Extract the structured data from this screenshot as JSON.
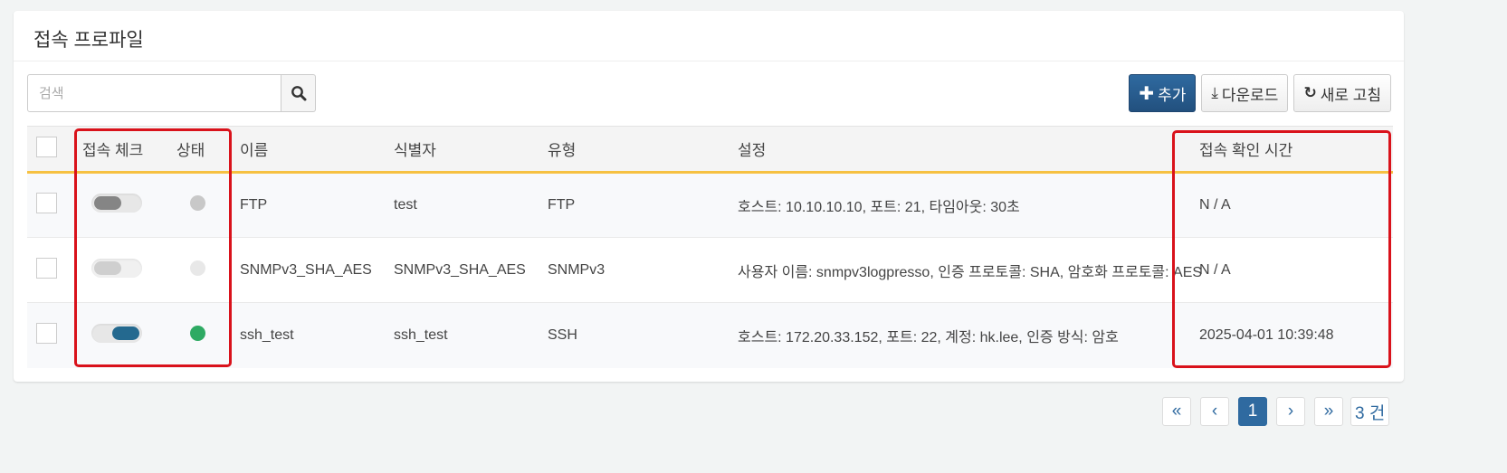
{
  "title": "접속 프로파일",
  "search": {
    "placeholder": "검색"
  },
  "toolbar": {
    "add": "추가",
    "download": "다운로드",
    "refresh": "새로 고침"
  },
  "columns": [
    "접속 체크",
    "상태",
    "이름",
    "식별자",
    "유형",
    "설정",
    "접속 확인 시간"
  ],
  "rows": [
    {
      "toggle": "off-dark",
      "status_color": "#c8c8c8",
      "name": "FTP",
      "identifier": "test",
      "type": "FTP",
      "settings": "호스트: 10.10.10.10, 포트: 21, 타임아웃: 30초",
      "checked_time": "N / A"
    },
    {
      "toggle": "disabled",
      "status_color": "#e8e8e8",
      "name": "SNMPv3_SHA_AES",
      "identifier": "SNMPv3_SHA_AES",
      "type": "SNMPv3",
      "settings": "사용자 이름: snmpv3logpresso, 인증 프로토콜: SHA, 암호화 프로토콜: AES",
      "checked_time": "N / A"
    },
    {
      "toggle": "on",
      "status_color": "#2eaa63",
      "name": "ssh_test",
      "identifier": "ssh_test",
      "type": "SSH",
      "settings": "호스트: 172.20.33.152, 포트: 22, 계정: hk.lee, 인증 방식: 암호",
      "checked_time": "2025-04-01 10:39:48"
    }
  ],
  "pagination": {
    "first": "«",
    "prev": "‹",
    "current": "1",
    "next": "›",
    "last": "»",
    "total": "3 건"
  },
  "colors": {
    "accent": "#2f6aa0",
    "highlight": "#d9121b",
    "header_border": "#f6c142"
  }
}
